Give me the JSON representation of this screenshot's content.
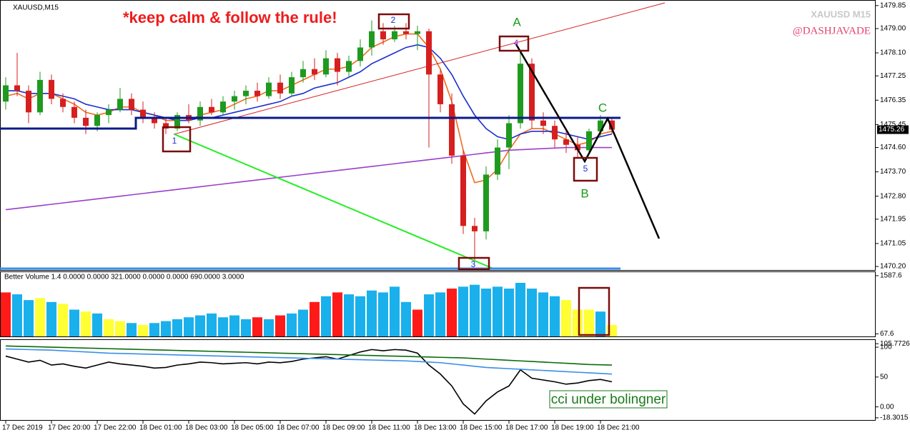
{
  "chart_data": [
    {
      "type": "candlestick",
      "title": "XAUUSD,M15",
      "annotations": [
        "*keep calm & follow the rule!",
        "XAUUSD M15",
        "@DASHJAVADE",
        "A",
        "B",
        "C",
        "1",
        "2",
        "3",
        "4",
        "5"
      ],
      "categories": [
        "17 Dec 2019",
        null,
        null,
        null,
        "17 Dec 20:00",
        null,
        null,
        null,
        "17 Dec 22:00",
        null,
        null,
        null,
        "18 Dec 01:00",
        null,
        null,
        null,
        "18 Dec 03:00",
        null,
        null,
        null,
        "18 Dec 05:00",
        null,
        null,
        null,
        "18 Dec 07:00",
        null,
        null,
        null,
        "18 Dec 09:00",
        null,
        null,
        null,
        "18 Dec 11:00",
        null,
        null,
        null,
        "18 Dec 13:00",
        null,
        null,
        null,
        "18 Dec 15:00",
        null,
        null,
        null,
        "18 Dec 17:00",
        null,
        null,
        null,
        "18 Dec 19:00",
        null,
        null,
        null,
        "18 Dec 21:00",
        null
      ],
      "ohlc": [
        [
          1476.3,
          1477.2,
          1476.0,
          1476.9
        ],
        [
          1476.9,
          1478.1,
          1476.5,
          1476.7
        ],
        [
          1476.7,
          1476.9,
          1475.5,
          1475.9
        ],
        [
          1475.9,
          1477.4,
          1475.8,
          1477.1
        ],
        [
          1477.1,
          1477.3,
          1476.2,
          1476.4
        ],
        [
          1476.4,
          1476.6,
          1475.9,
          1476.1
        ],
        [
          1476.1,
          1476.3,
          1475.5,
          1475.7
        ],
        [
          1475.7,
          1476.0,
          1475.1,
          1475.4
        ],
        [
          1475.4,
          1475.9,
          1475.2,
          1475.8
        ],
        [
          1475.8,
          1476.2,
          1475.5,
          1476.0
        ],
        [
          1476.0,
          1476.8,
          1475.9,
          1476.4
        ],
        [
          1476.4,
          1476.6,
          1475.8,
          1476.0
        ],
        [
          1476.0,
          1476.3,
          1475.5,
          1475.7
        ],
        [
          1475.7,
          1475.9,
          1475.3,
          1475.5
        ],
        [
          1475.5,
          1475.7,
          1475.1,
          1475.3
        ],
        [
          1475.3,
          1475.9,
          1475.2,
          1475.8
        ],
        [
          1475.8,
          1476.2,
          1475.5,
          1475.6
        ],
        [
          1475.6,
          1476.3,
          1475.4,
          1476.1
        ],
        [
          1476.1,
          1476.4,
          1475.8,
          1475.9
        ],
        [
          1475.9,
          1476.5,
          1475.8,
          1476.3
        ],
        [
          1476.3,
          1476.7,
          1476.0,
          1476.5
        ],
        [
          1476.5,
          1476.9,
          1476.2,
          1476.7
        ],
        [
          1476.7,
          1477.0,
          1476.3,
          1476.5
        ],
        [
          1476.5,
          1477.2,
          1476.4,
          1477.0
        ],
        [
          1477.0,
          1477.3,
          1476.4,
          1476.6
        ],
        [
          1476.6,
          1477.4,
          1476.5,
          1477.2
        ],
        [
          1477.2,
          1477.8,
          1477.0,
          1477.5
        ],
        [
          1477.5,
          1477.9,
          1477.1,
          1477.3
        ],
        [
          1477.3,
          1478.2,
          1477.2,
          1477.9
        ],
        [
          1477.9,
          1478.1,
          1476.9,
          1477.4
        ],
        [
          1477.4,
          1478.0,
          1477.2,
          1477.8
        ],
        [
          1477.8,
          1478.6,
          1477.6,
          1478.3
        ],
        [
          1478.3,
          1479.3,
          1478.0,
          1478.9
        ],
        [
          1478.9,
          1479.2,
          1478.4,
          1478.6
        ],
        [
          1478.6,
          1479.1,
          1478.5,
          1478.9
        ],
        [
          1478.9,
          1479.2,
          1478.6,
          1478.8
        ],
        [
          1478.8,
          1479.1,
          1478.2,
          1478.9
        ],
        [
          1478.9,
          1479.0,
          1474.6,
          1477.3
        ],
        [
          1477.3,
          1477.5,
          1475.9,
          1476.2
        ],
        [
          1476.2,
          1476.6,
          1474.0,
          1474.3
        ],
        [
          1474.3,
          1474.5,
          1471.4,
          1471.7
        ],
        [
          1471.7,
          1472.0,
          1470.4,
          1471.5
        ],
        [
          1471.5,
          1473.9,
          1471.2,
          1473.6
        ],
        [
          1473.6,
          1474.9,
          1473.4,
          1474.6
        ],
        [
          1474.6,
          1475.8,
          1473.8,
          1475.5
        ],
        [
          1475.5,
          1478.2,
          1475.3,
          1477.7
        ],
        [
          1477.7,
          1477.9,
          1475.3,
          1475.6
        ],
        [
          1475.6,
          1475.9,
          1475.1,
          1475.4
        ],
        [
          1475.4,
          1475.6,
          1474.6,
          1474.9
        ],
        [
          1474.9,
          1475.3,
          1474.4,
          1474.7
        ],
        [
          1474.7,
          1475.0,
          1474.2,
          1474.5
        ],
        [
          1474.5,
          1475.3,
          1474.4,
          1475.2
        ],
        [
          1475.2,
          1475.8,
          1475.0,
          1475.6
        ],
        [
          1475.6,
          1475.7,
          1475.1,
          1475.26
        ]
      ],
      "up_color": "#1f9a1f",
      "down_color": "#d61f1f",
      "series": [
        {
          "color": "#f06a1c",
          "values": [
            1476.5,
            1476.6,
            1476.4,
            1476.6,
            1476.6,
            1476.4,
            1476.2,
            1475.9,
            1475.8,
            1475.9,
            1476.1,
            1476.1,
            1475.9,
            1475.8,
            1475.6,
            1475.6,
            1475.6,
            1475.8,
            1475.9,
            1476.0,
            1476.2,
            1476.4,
            1476.5,
            1476.7,
            1476.7,
            1476.9,
            1477.1,
            1477.3,
            1477.5,
            1477.5,
            1477.6,
            1477.9,
            1478.3,
            1478.5,
            1478.7,
            1478.8,
            1478.8,
            1478.3,
            1477.5,
            1476.3,
            1474.5,
            1473.3,
            1473.4,
            1473.8,
            1474.5,
            1475.1,
            1475.3,
            1475.3,
            1475.1,
            1474.9,
            1474.7,
            1474.8,
            1475.1,
            1475.2
          ]
        },
        {
          "color": "#1a2fd0",
          "values": [
            1476.7,
            1476.7,
            1476.6,
            1476.6,
            1476.6,
            1476.5,
            1476.4,
            1476.2,
            1476.1,
            1476.0,
            1476.0,
            1476.0,
            1475.9,
            1475.8,
            1475.7,
            1475.6,
            1475.6,
            1475.7,
            1475.7,
            1475.8,
            1475.9,
            1476.0,
            1476.1,
            1476.2,
            1476.3,
            1476.5,
            1476.6,
            1476.8,
            1476.9,
            1477.0,
            1477.2,
            1477.4,
            1477.7,
            1477.9,
            1478.1,
            1478.3,
            1478.4,
            1478.3,
            1477.9,
            1477.3,
            1476.5,
            1475.8,
            1475.3,
            1475.0,
            1474.9,
            1475.1,
            1475.2,
            1475.2,
            1475.2,
            1475.1,
            1475.0,
            1474.9,
            1475.0,
            1475.1
          ]
        },
        {
          "color": "#9a3fc8",
          "values": [
            1472.3,
            1472.35,
            1472.4,
            1472.45,
            1472.5,
            1472.55,
            1472.6,
            1472.65,
            1472.7,
            1472.75,
            1472.8,
            1472.85,
            1472.9,
            1472.95,
            1473.0,
            1473.05,
            1473.1,
            1473.15,
            1473.2,
            1473.25,
            1473.3,
            1473.35,
            1473.4,
            1473.45,
            1473.5,
            1473.55,
            1473.6,
            1473.65,
            1473.7,
            1473.75,
            1473.8,
            1473.85,
            1473.9,
            1473.95,
            1474.0,
            1474.05,
            1474.1,
            1474.15,
            1474.2,
            1474.25,
            1474.3,
            1474.35,
            1474.4,
            1474.45,
            1474.5,
            1474.52,
            1474.54,
            1474.56,
            1474.58,
            1474.6,
            1474.6,
            1474.6,
            1474.6,
            1474.6
          ]
        }
      ],
      "ylim": [
        1470.07,
        1479.95
      ],
      "yticks": [
        1479.85,
        {
          "value": 1479,
          "label": "1479.00"
        },
        {
          "value": 1478.1,
          "label": "1478.10"
        },
        1477.25,
        1476.35,
        1475.45,
        {
          "value": 1474.6,
          "label": "1474.60"
        },
        {
          "value": 1473.7,
          "label": "1473.70"
        },
        {
          "value": 1472.8,
          "label": "1472.80"
        },
        1471.95,
        1471.05,
        {
          "value": 1470.2,
          "label": "1470.20"
        }
      ]
    },
    {
      "type": "bar",
      "title": "Better Volume 1.4 0.0000 0.0000 321.0000 0.0000 0.0000 690.0000 3.0000",
      "values": [
        1150,
        1100,
        950,
        1000,
        900,
        850,
        700,
        650,
        600,
        450,
        400,
        350,
        300,
        350,
        400,
        450,
        500,
        550,
        600,
        500,
        550,
        450,
        500,
        450,
        550,
        600,
        700,
        900,
        1050,
        1150,
        1100,
        1050,
        1200,
        1150,
        1300,
        900,
        700,
        1100,
        1150,
        1250,
        1300,
        1350,
        1250,
        1300,
        1250,
        1400,
        1250,
        1150,
        1050,
        950,
        700,
        700,
        650,
        300
      ],
      "colors": [
        "#ff1a1a",
        "#1ab0ec",
        "#1ab0ec",
        "#ffff33",
        "#1ab0ec",
        "#ffff33",
        "#1ab0ec",
        "#ffff33",
        "#1ab0ec",
        "#ffff33",
        "#ffff33",
        "#1ab0ec",
        "#ffff33",
        "#1ab0ec",
        "#1ab0ec",
        "#1ab0ec",
        "#1ab0ec",
        "#1ab0ec",
        "#1ab0ec",
        "#1ab0ec",
        "#1ab0ec",
        "#1ab0ec",
        "#ff1a1a",
        "#1ab0ec",
        "#ff1a1a",
        "#1ab0ec",
        "#1ab0ec",
        "#ff1a1a",
        "#1ab0ec",
        "#ff1a1a",
        "#1ab0ec",
        "#1ab0ec",
        "#1ab0ec",
        "#1ab0ec",
        "#1ab0ec",
        "#1ab0ec",
        "#ff1a1a",
        "#1ab0ec",
        "#1ab0ec",
        "#ff1a1a",
        "#1ab0ec",
        "#1ab0ec",
        "#1ab0ec",
        "#1ab0ec",
        "#1ab0ec",
        "#1ab0ec",
        "#1ab0ec",
        "#1ab0ec",
        "#1ab0ec",
        "#ffff33",
        "#ffff33",
        "#ffff33",
        "#1ab0ec",
        "#ffff33"
      ],
      "ylim": [
        0,
        1680
      ],
      "yticks": [
        1587.6,
        67.6
      ]
    },
    {
      "type": "line",
      "annotation": "cci under bolingner",
      "series": [
        {
          "color": "#000000",
          "values": [
            85,
            80,
            75,
            78,
            70,
            72,
            68,
            65,
            70,
            75,
            72,
            70,
            68,
            65,
            66,
            70,
            72,
            75,
            74,
            72,
            73,
            74,
            72,
            75,
            74,
            76,
            80,
            82,
            84,
            80,
            86,
            92,
            96,
            94,
            96,
            95,
            90,
            70,
            55,
            35,
            5,
            -12,
            10,
            25,
            35,
            62,
            48,
            45,
            42,
            38,
            40,
            44,
            46,
            42
          ]
        },
        {
          "color": "#0c6b0c",
          "values": [
            102,
            101.5,
            101,
            100.5,
            100,
            99.5,
            99,
            98.5,
            98,
            97.5,
            97,
            96.5,
            96,
            95.5,
            95,
            94.5,
            94,
            93.5,
            93,
            92.5,
            92,
            91.5,
            91,
            90.5,
            90,
            89.5,
            89,
            88.5,
            88,
            87.5,
            87,
            86.5,
            86,
            85.5,
            85,
            84.5,
            84,
            83.5,
            83,
            82.5,
            82,
            81,
            80,
            79,
            78,
            77,
            76,
            75,
            74,
            73,
            72,
            71,
            70.5,
            70
          ]
        },
        {
          "color": "#3a8ee8",
          "values": [
            97,
            96.5,
            96,
            95.5,
            95,
            94,
            93,
            92,
            91,
            90,
            89.5,
            89,
            88.5,
            88,
            87.5,
            87,
            86.5,
            86,
            85.5,
            85,
            84.5,
            84,
            83.5,
            83,
            82.5,
            82,
            81.5,
            81,
            80.5,
            80,
            79.5,
            79,
            78.5,
            78,
            77.5,
            77,
            76,
            75,
            74,
            72,
            70,
            68,
            66,
            65,
            64,
            63,
            62,
            61,
            60,
            59,
            58,
            57,
            56,
            55
          ]
        }
      ],
      "ylim": [
        -22,
        112
      ],
      "yticks": [
        105.7726,
        100,
        50,
        {
          "value": 0,
          "label": "0.00"
        },
        -18.3015
      ]
    }
  ]
}
